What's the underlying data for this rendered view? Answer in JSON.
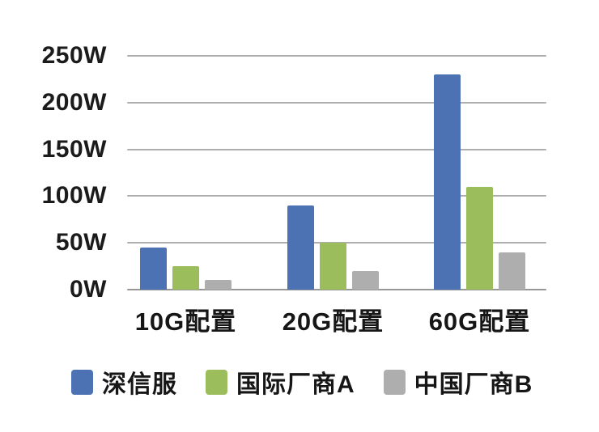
{
  "chart_data": {
    "type": "bar",
    "title": "",
    "categories": [
      "10G配置",
      "20G配置",
      "60G配置"
    ],
    "series": [
      {
        "name": "深信服",
        "color": "#4d72b4",
        "values": [
          45,
          90,
          230
        ]
      },
      {
        "name": "国际厂商A",
        "color": "#9cbd5c",
        "values": [
          25,
          50,
          110
        ]
      },
      {
        "name": "中国厂商B",
        "color": "#aeaeae",
        "values": [
          10,
          20,
          40
        ]
      }
    ],
    "xlabel": "",
    "ylabel": "",
    "y_ticks": [
      "0W",
      "50W",
      "100W",
      "150W",
      "200W",
      "250W"
    ],
    "ylim": [
      0,
      250
    ],
    "grid": true,
    "legend_position": "bottom"
  },
  "colors": {
    "background": "#ffffff",
    "gridline": "#979797",
    "text": "#1b1b1b"
  }
}
